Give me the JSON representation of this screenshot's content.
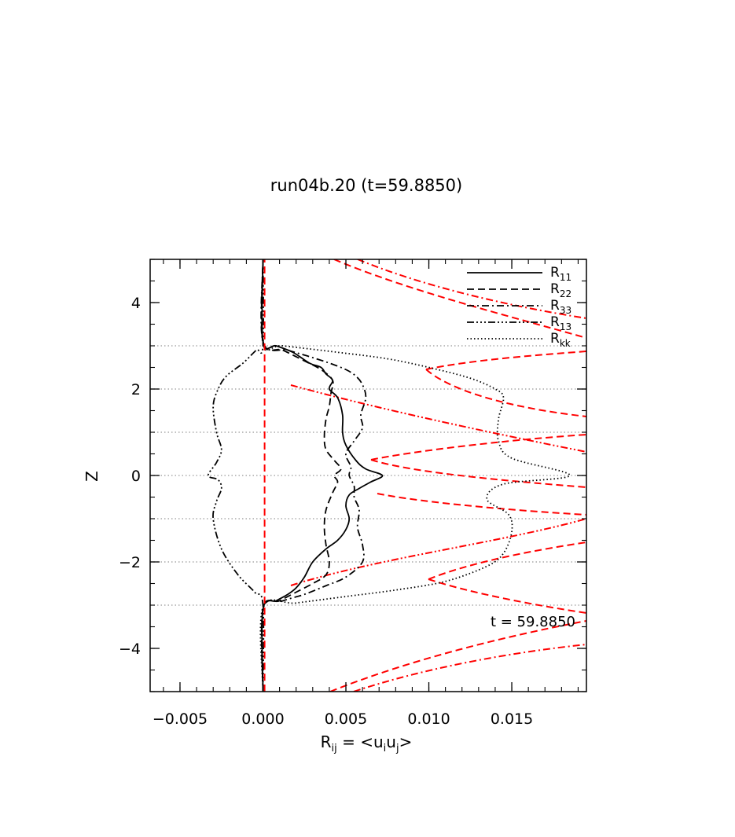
{
  "chart_data": {
    "type": "line",
    "title": "run04b.20 (t=59.8850)",
    "annotation": "t = 59.8850",
    "xlabel": {
      "main": "R",
      "sub": "ij",
      "eq": " = <u",
      "sub2": "i",
      "mid": "u",
      "sub3": "j",
      "end": ">"
    },
    "ylabel": "Z",
    "xlim": [
      -0.0068,
      0.0195
    ],
    "ylim": [
      -5,
      5
    ],
    "xticks": [
      -0.005,
      0.0,
      0.005,
      0.01,
      0.015
    ],
    "xtick_labels": [
      "−0.005",
      "0.000",
      "0.005",
      "0.010",
      "0.015"
    ],
    "yticks": [
      -4,
      -2,
      0,
      2,
      4
    ],
    "ytick_labels": [
      "−4",
      "−2",
      "0",
      "2",
      "4"
    ],
    "hlines": [
      -3,
      -2,
      -1,
      0,
      1,
      2,
      3
    ],
    "legend_position": "top-right",
    "series": [
      {
        "name": "R",
        "sub": "11",
        "style": "solid",
        "color": "#000000",
        "x": [
          0,
          0,
          0.0008,
          0.0015,
          0.002,
          0.0025,
          0.003,
          0.0038,
          0.0045,
          0.005,
          0.0052,
          0.005,
          0.0052,
          0.0058,
          0.0065,
          0.0072,
          0.0062,
          0.0056,
          0.005,
          0.0048,
          0.0048,
          0.0045,
          0.004,
          0.0042,
          0.0038,
          0.0035,
          0.0028,
          0.0018,
          0.0008,
          0,
          0
        ],
        "y": [
          -5,
          -3.1,
          -2.9,
          -2.75,
          -2.6,
          -2.35,
          -2.0,
          -1.7,
          -1.5,
          -1.25,
          -1.0,
          -0.7,
          -0.45,
          -0.3,
          -0.15,
          0.0,
          0.15,
          0.35,
          0.7,
          1.0,
          1.4,
          1.8,
          2.0,
          2.2,
          2.35,
          2.5,
          2.6,
          2.85,
          3.0,
          3.1,
          5
        ]
      },
      {
        "name": "R",
        "sub": "22",
        "style": "dashed",
        "color": "#000000",
        "x": [
          0,
          0,
          0.001,
          0.002,
          0.003,
          0.0038,
          0.004,
          0.0038,
          0.0037,
          0.0038,
          0.0042,
          0.0045,
          0.0043,
          0.0047,
          0.0043,
          0.0038,
          0.0037,
          0.0038,
          0.004,
          0.0041,
          0.0042,
          0.0035,
          0.0025,
          0.0012,
          0,
          0
        ],
        "y": [
          -5,
          -3.1,
          -2.9,
          -2.7,
          -2.5,
          -2.3,
          -2.0,
          -1.6,
          -1.2,
          -0.8,
          -0.4,
          -0.15,
          0.0,
          0.15,
          0.35,
          0.6,
          0.9,
          1.3,
          1.6,
          1.9,
          2.2,
          2.45,
          2.65,
          2.9,
          3.1,
          5
        ]
      },
      {
        "name": "R",
        "sub": "33",
        "style": "dashdot",
        "color": "#000000",
        "x": [
          0,
          0,
          0.0012,
          0.0025,
          0.0038,
          0.005,
          0.006,
          0.006,
          0.0057,
          0.0058,
          0.0055,
          0.0055,
          0.0052,
          0.0053,
          0.005,
          0.0055,
          0.006,
          0.0059,
          0.0062,
          0.006,
          0.0056,
          0.005,
          0.004,
          0.0028,
          0.0015,
          0,
          0
        ],
        "y": [
          -5,
          -3.1,
          -2.9,
          -2.75,
          -2.55,
          -2.35,
          -2.0,
          -1.6,
          -1.2,
          -0.8,
          -0.5,
          -0.25,
          0.0,
          0.2,
          0.5,
          0.8,
          1.1,
          1.4,
          1.8,
          2.1,
          2.3,
          2.45,
          2.6,
          2.75,
          2.9,
          3.1,
          5
        ]
      },
      {
        "name": "R",
        "sub": "13",
        "style": "dashdotdotdot",
        "color": "#000000",
        "x": [
          0,
          0,
          -0.0005,
          -0.0015,
          -0.0025,
          -0.003,
          -0.0028,
          -0.0025,
          -0.0027,
          -0.0033,
          -0.0028,
          -0.0025,
          -0.0028,
          -0.003,
          -0.0027,
          -0.0022,
          -0.0012,
          -0.0004,
          0,
          0
        ],
        "y": [
          -5,
          -3.0,
          -2.7,
          -2.3,
          -1.7,
          -1.0,
          -0.6,
          -0.3,
          -0.1,
          0.0,
          0.3,
          0.6,
          1.0,
          1.6,
          2.0,
          2.3,
          2.6,
          2.9,
          3.0,
          5
        ]
      },
      {
        "name": "R",
        "sub": "kk",
        "style": "dotted",
        "color": "#000000",
        "x": [
          0,
          0,
          0.002,
          0.005,
          0.008,
          0.011,
          0.0135,
          0.0145,
          0.015,
          0.0148,
          0.0135,
          0.0145,
          0.0185,
          0.015,
          0.0142,
          0.0142,
          0.0145,
          0.014,
          0.0125,
          0.01,
          0.0075,
          0.0045,
          0.0012,
          0,
          0
        ],
        "y": [
          -5,
          -3.05,
          -2.95,
          -2.8,
          -2.65,
          -2.45,
          -2.1,
          -1.8,
          -1.3,
          -0.9,
          -0.55,
          -0.2,
          0.0,
          0.4,
          0.8,
          1.3,
          1.8,
          2.0,
          2.25,
          2.5,
          2.7,
          2.85,
          3.0,
          3.05,
          5
        ]
      },
      {
        "name": "",
        "style": "dashed",
        "color": "#ff0000",
        "x": [
          0.0001,
          0.0001
        ],
        "y": [
          -5,
          5
        ]
      }
    ]
  }
}
